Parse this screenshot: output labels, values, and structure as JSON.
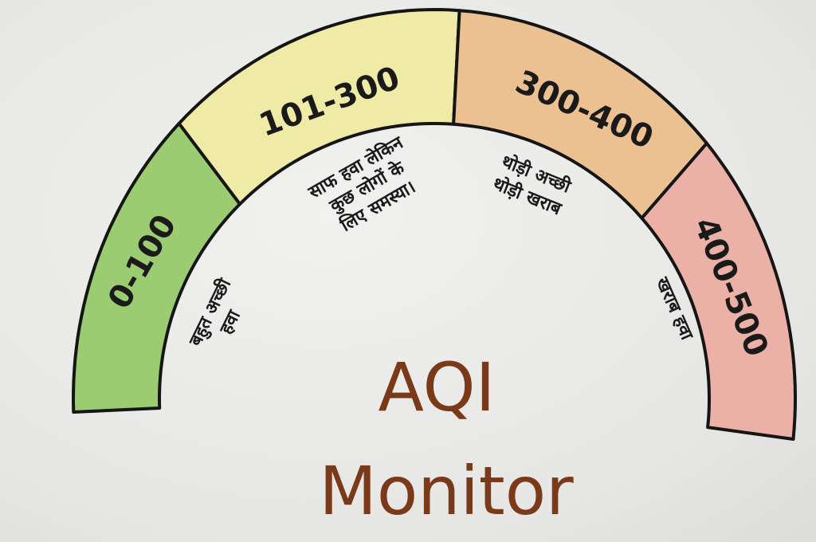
{
  "title": {
    "line1": "AQI",
    "line2": "Monitor"
  },
  "segments": [
    {
      "range": "0-100",
      "description": [
        "बहुत अच्छी",
        "हवा"
      ],
      "color": "#9ccc72"
    },
    {
      "range": "101-300",
      "description": [
        "साफ हवा लेकिन",
        "कुछ लोगों के",
        "लिए समस्या।"
      ],
      "color": "#efeaa6"
    },
    {
      "range": "300-400",
      "description": [
        "थोड़ी अच्छी",
        "थोड़ी खराब"
      ],
      "color": "#ecc192"
    },
    {
      "range": "400-500",
      "description": [
        "खराब हवा"
      ],
      "color": "#ebb0a6"
    }
  ]
}
